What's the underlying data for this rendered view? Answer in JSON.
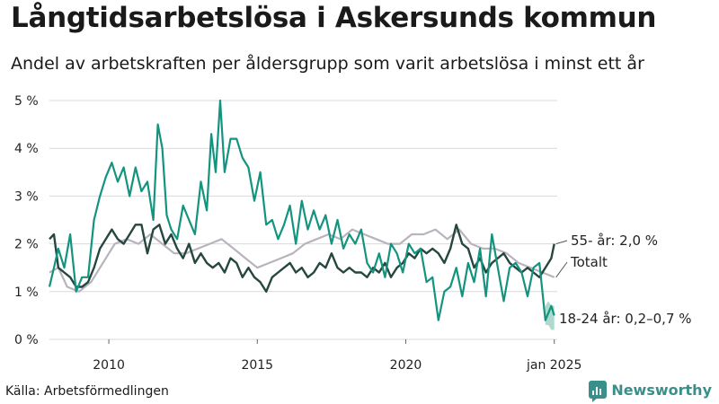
{
  "header": {
    "title": "Långtidsarbetslösa i Askersunds kommun",
    "subtitle": "Andel av arbetskraften per åldersgrupp som varit arbetslösa i minst ett år"
  },
  "footer": {
    "source": "Källa: Arbetsförmedlingen",
    "brand": "Newsworthy"
  },
  "colors": {
    "youth": "#14937f",
    "youth_band": "#9fd2c6",
    "senior": "#26473f",
    "total": "#b9b3bd",
    "grid": "#d9d9d9",
    "brand": "#3a8f8b"
  },
  "chart_data": {
    "type": "line",
    "x_unit": "year (decimal)",
    "xlim": [
      2008.0,
      2025.1
    ],
    "ylim": [
      0,
      5
    ],
    "y_ticks": [
      0,
      1,
      2,
      3,
      4,
      5
    ],
    "y_tick_labels": [
      "0 %",
      "1 %",
      "2 %",
      "3 %",
      "4 %",
      "5 %"
    ],
    "x_ticks": [
      2010,
      2015,
      2020,
      2025.0
    ],
    "x_tick_labels": [
      "2010",
      "2015",
      "2020",
      "jan 2025"
    ],
    "grid": "horizontal",
    "series": [
      {
        "key": "total",
        "name": "Totalt",
        "label": "Totalt",
        "x": [
          2008.0,
          2008.3,
          2008.6,
          2009.0,
          2009.4,
          2009.8,
          2010.2,
          2010.6,
          2011.0,
          2011.4,
          2011.8,
          2012.2,
          2012.6,
          2013.0,
          2013.4,
          2013.8,
          2014.2,
          2014.6,
          2015.0,
          2015.4,
          2015.8,
          2016.2,
          2016.6,
          2017.0,
          2017.4,
          2017.8,
          2018.2,
          2018.6,
          2019.0,
          2019.4,
          2019.8,
          2020.2,
          2020.6,
          2021.0,
          2021.4,
          2021.8,
          2022.2,
          2022.6,
          2023.0,
          2023.4,
          2023.8,
          2024.2,
          2024.6,
          2025.0
        ],
        "values": [
          1.4,
          1.5,
          1.1,
          1.0,
          1.2,
          1.6,
          2.0,
          2.1,
          2.0,
          2.2,
          2.0,
          1.8,
          1.8,
          1.9,
          2.0,
          2.1,
          1.9,
          1.7,
          1.5,
          1.6,
          1.7,
          1.8,
          2.0,
          2.1,
          2.2,
          2.1,
          2.3,
          2.2,
          2.1,
          2.0,
          2.0,
          2.2,
          2.2,
          2.3,
          2.1,
          2.3,
          2.0,
          1.9,
          1.9,
          1.8,
          1.6,
          1.5,
          1.4,
          1.3
        ]
      },
      {
        "key": "senior",
        "name": "55- år",
        "label": "55- år: 2,0 %",
        "x": [
          2008.0,
          2008.15,
          2008.3,
          2008.5,
          2008.7,
          2008.9,
          2009.1,
          2009.3,
          2009.5,
          2009.7,
          2009.9,
          2010.1,
          2010.3,
          2010.5,
          2010.7,
          2010.9,
          2011.1,
          2011.3,
          2011.5,
          2011.7,
          2011.9,
          2012.1,
          2012.3,
          2012.5,
          2012.7,
          2012.9,
          2013.1,
          2013.3,
          2013.5,
          2013.7,
          2013.9,
          2014.1,
          2014.3,
          2014.5,
          2014.7,
          2014.9,
          2015.1,
          2015.3,
          2015.5,
          2015.7,
          2015.9,
          2016.1,
          2016.3,
          2016.5,
          2016.7,
          2016.9,
          2017.1,
          2017.3,
          2017.5,
          2017.7,
          2017.9,
          2018.1,
          2018.3,
          2018.5,
          2018.7,
          2018.9,
          2019.1,
          2019.3,
          2019.5,
          2019.7,
          2019.9,
          2020.1,
          2020.3,
          2020.5,
          2020.7,
          2020.9,
          2021.1,
          2021.3,
          2021.5,
          2021.7,
          2021.9,
          2022.1,
          2022.3,
          2022.5,
          2022.7,
          2022.9,
          2023.1,
          2023.3,
          2023.5,
          2023.7,
          2023.9,
          2024.1,
          2024.3,
          2024.5,
          2024.7,
          2024.9,
          2025.0
        ],
        "values": [
          2.1,
          2.2,
          1.5,
          1.4,
          1.3,
          1.1,
          1.1,
          1.2,
          1.5,
          1.9,
          2.1,
          2.3,
          2.1,
          2.0,
          2.2,
          2.4,
          2.4,
          1.8,
          2.3,
          2.4,
          2.0,
          2.2,
          1.9,
          1.7,
          2.0,
          1.6,
          1.8,
          1.6,
          1.5,
          1.6,
          1.4,
          1.7,
          1.6,
          1.3,
          1.5,
          1.3,
          1.2,
          1.0,
          1.3,
          1.4,
          1.5,
          1.6,
          1.4,
          1.5,
          1.3,
          1.4,
          1.6,
          1.5,
          1.8,
          1.5,
          1.4,
          1.5,
          1.4,
          1.4,
          1.3,
          1.5,
          1.4,
          1.6,
          1.3,
          1.5,
          1.6,
          1.8,
          1.7,
          1.9,
          1.8,
          1.9,
          1.8,
          1.6,
          1.9,
          2.4,
          2.0,
          1.9,
          1.5,
          1.7,
          1.4,
          1.6,
          1.7,
          1.8,
          1.6,
          1.5,
          1.4,
          1.5,
          1.4,
          1.3,
          1.5,
          1.7,
          2.0
        ]
      },
      {
        "key": "youth",
        "name": "18-24 år",
        "label": "18-24 år: 0,2–0,7 %",
        "x": [
          2008.0,
          2008.15,
          2008.3,
          2008.5,
          2008.7,
          2008.9,
          2009.1,
          2009.3,
          2009.5,
          2009.7,
          2009.9,
          2010.1,
          2010.3,
          2010.5,
          2010.7,
          2010.9,
          2011.1,
          2011.3,
          2011.5,
          2011.65,
          2011.8,
          2011.95,
          2012.1,
          2012.3,
          2012.5,
          2012.7,
          2012.9,
          2013.1,
          2013.3,
          2013.45,
          2013.6,
          2013.75,
          2013.9,
          2014.1,
          2014.3,
          2014.5,
          2014.7,
          2014.9,
          2015.1,
          2015.3,
          2015.5,
          2015.7,
          2015.9,
          2016.1,
          2016.3,
          2016.5,
          2016.7,
          2016.9,
          2017.1,
          2017.3,
          2017.5,
          2017.7,
          2017.9,
          2018.1,
          2018.3,
          2018.5,
          2018.7,
          2018.9,
          2019.1,
          2019.3,
          2019.5,
          2019.7,
          2019.9,
          2020.1,
          2020.3,
          2020.5,
          2020.7,
          2020.9,
          2021.1,
          2021.3,
          2021.5,
          2021.7,
          2021.9,
          2022.1,
          2022.3,
          2022.5,
          2022.7,
          2022.9,
          2023.1,
          2023.3,
          2023.5,
          2023.7,
          2023.9,
          2024.1,
          2024.3,
          2024.5,
          2024.7,
          2024.9,
          2025.0
        ],
        "values": [
          1.1,
          1.5,
          1.9,
          1.5,
          2.2,
          1.0,
          1.3,
          1.3,
          2.5,
          3.0,
          3.4,
          3.7,
          3.3,
          3.6,
          3.0,
          3.6,
          3.1,
          3.3,
          2.5,
          4.5,
          4.0,
          2.6,
          2.3,
          2.1,
          2.8,
          2.5,
          2.2,
          3.3,
          2.7,
          4.3,
          3.5,
          5.0,
          3.5,
          4.2,
          4.2,
          3.8,
          3.6,
          2.9,
          3.5,
          2.4,
          2.5,
          2.1,
          2.4,
          2.8,
          2.0,
          2.9,
          2.3,
          2.7,
          2.3,
          2.6,
          2.0,
          2.5,
          1.9,
          2.2,
          2.0,
          2.3,
          1.6,
          1.4,
          1.8,
          1.3,
          2.0,
          1.8,
          1.4,
          2.0,
          1.8,
          1.9,
          1.2,
          1.3,
          0.4,
          1.0,
          1.1,
          1.5,
          0.9,
          1.6,
          1.2,
          1.9,
          0.9,
          2.2,
          1.5,
          0.8,
          1.5,
          1.6,
          1.4,
          0.9,
          1.5,
          1.6,
          0.4,
          0.7,
          0.5
        ],
        "band": {
          "x": [
            2024.7,
            2024.8,
            2024.9,
            2025.0
          ],
          "low": [
            0.3,
            0.3,
            0.2,
            0.2
          ],
          "high": [
            0.7,
            0.8,
            0.7,
            0.7
          ]
        }
      }
    ]
  }
}
